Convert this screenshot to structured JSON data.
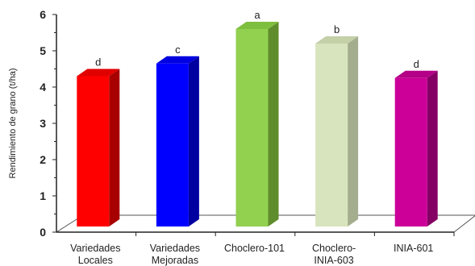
{
  "chart_data": {
    "type": "bar",
    "title": "",
    "xlabel": "",
    "ylabel": "Rendimiento de grano (t/ha)",
    "ylim": [
      0,
      6
    ],
    "y_ticks": [
      "0",
      "1",
      "2",
      "3",
      "4",
      "5",
      "6"
    ],
    "grid": false,
    "legend": "none",
    "categories": [
      [
        "Variedades",
        "Locales"
      ],
      [
        "Variedades",
        "Mejoradas"
      ],
      [
        "Choclero-101"
      ],
      [
        "Choclero-",
        "INIA-603"
      ],
      [
        "INIA-601"
      ]
    ],
    "values": [
      4.3,
      4.65,
      5.6,
      5.2,
      4.25
    ],
    "data_labels": [
      "d",
      "c",
      "a",
      "b",
      "d"
    ],
    "colors": [
      {
        "front": "#ff0000",
        "side": "#a80000",
        "top": "#e00000"
      },
      {
        "front": "#0000ff",
        "side": "#0000a0",
        "top": "#0000e0"
      },
      {
        "front": "#92d050",
        "side": "#5f8c2c",
        "top": "#7fbf3f"
      },
      {
        "front": "#d7e4bd",
        "side": "#a4ae8e",
        "top": "#c3d0a8"
      },
      {
        "front": "#cc0099",
        "side": "#850064",
        "top": "#b30086"
      }
    ]
  }
}
